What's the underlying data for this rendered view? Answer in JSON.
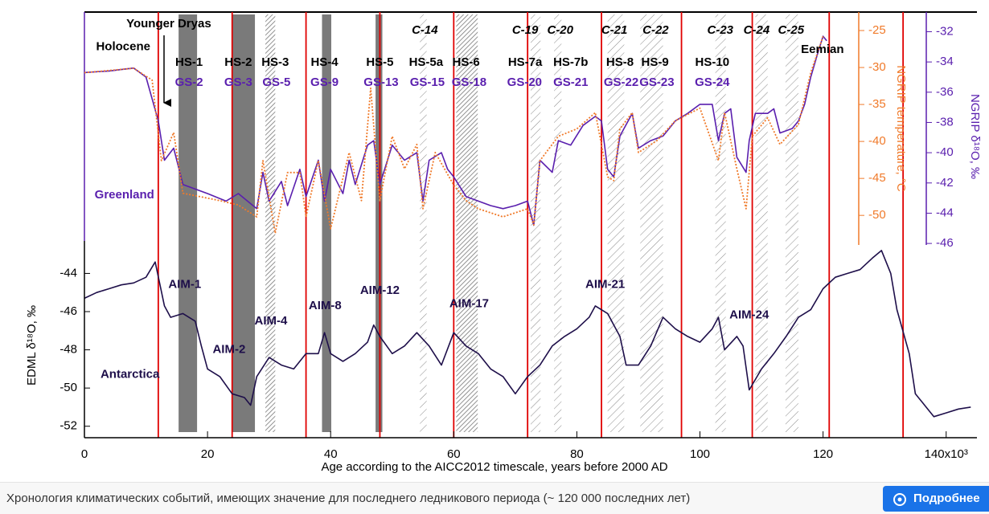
{
  "chart_data": [
    {
      "type": "line",
      "xlim": [
        0,
        145
      ],
      "ylim": [
        -46.1,
        -30.7
      ],
      "yticks": [
        -32,
        -34,
        -36,
        -38,
        -40,
        -42,
        -44,
        -46
      ],
      "ylabel": "NGRIP δ¹⁸O, ‰",
      "y2lim": [
        -54,
        -22.5
      ],
      "y2ticks": [
        -25,
        -30,
        -35,
        -40,
        -45,
        -50
      ],
      "y2label": "NGRIP temperature, °C",
      "series": [
        {
          "color": "#5a1fae",
          "x": [
            0,
            4,
            8,
            10,
            12,
            13,
            14.5,
            16,
            20,
            23,
            25,
            28,
            29,
            30,
            32,
            33,
            35,
            36,
            38,
            39,
            40,
            42,
            43,
            44,
            46,
            47,
            48,
            50,
            52,
            54,
            55,
            56,
            58,
            59,
            60,
            62,
            64,
            66,
            68,
            70,
            72,
            73,
            74,
            76,
            77,
            79,
            81,
            83,
            84,
            85,
            86,
            87,
            89,
            90,
            92,
            94,
            96,
            98,
            100,
            102,
            103,
            104,
            105,
            106,
            107.5,
            108,
            109,
            111,
            112,
            113,
            115,
            116,
            117,
            118,
            119,
            120,
            120.6
          ],
          "values": [
            -34.7,
            -34.6,
            -34.4,
            -35.0,
            -37.9,
            -40.5,
            -39.7,
            -42.1,
            -42.7,
            -43.2,
            -42.7,
            -43.7,
            -41.3,
            -43.2,
            -41.9,
            -43.5,
            -41.1,
            -42.9,
            -40.5,
            -43.2,
            -41.1,
            -42.7,
            -40.5,
            -42.1,
            -39.5,
            -39.2,
            -42.1,
            -39.5,
            -40.5,
            -40.0,
            -43.2,
            -40.5,
            -40.0,
            -41.1,
            -41.6,
            -42.9,
            -43.2,
            -43.5,
            -43.7,
            -43.5,
            -43.2,
            -44.8,
            -40.5,
            -41.3,
            -39.2,
            -39.5,
            -38.2,
            -37.6,
            -37.9,
            -41.1,
            -41.6,
            -38.9,
            -37.4,
            -39.7,
            -39.2,
            -38.9,
            -37.9,
            -37.4,
            -36.8,
            -36.8,
            -39.2,
            -37.4,
            -37.1,
            -40.3,
            -41.3,
            -39.2,
            -37.4,
            -37.4,
            -37.1,
            -38.7,
            -38.4,
            -37.9,
            -36.8,
            -35.0,
            -33.6,
            -32.3,
            -32.6
          ]
        },
        {
          "color": "#f07a2a",
          "axis": "y2",
          "dash": "dotted",
          "x": [
            0,
            8,
            11,
            12.5,
            14.5,
            16,
            22,
            25,
            28,
            29,
            31,
            33,
            35,
            36,
            38,
            40,
            43,
            45,
            46.5,
            48,
            50,
            52,
            54,
            55,
            57,
            60,
            62,
            64,
            68,
            72,
            73,
            74,
            77,
            80,
            83,
            85,
            86,
            87,
            89,
            90,
            93,
            96,
            100,
            103,
            104,
            106,
            107.5,
            108.5,
            111,
            113,
            116,
            118,
            120
          ],
          "values": [
            -30.7,
            -30.1,
            -31.7,
            -42.6,
            -38.8,
            -47.0,
            -48.0,
            -48.6,
            -50.2,
            -42.6,
            -52.4,
            -44.2,
            -44.2,
            -50.2,
            -42.6,
            -51.8,
            -41.5,
            -48.0,
            -32.8,
            -48.0,
            -39.3,
            -43.7,
            -40.4,
            -49.1,
            -41.5,
            -45.9,
            -48.0,
            -49.1,
            -50.2,
            -49.1,
            -51.3,
            -42.6,
            -39.3,
            -38.3,
            -36.1,
            -44.8,
            -45.3,
            -38.3,
            -36.1,
            -41.5,
            -39.9,
            -37.2,
            -35.5,
            -42.6,
            -36.1,
            -43.7,
            -49.1,
            -39.3,
            -36.8,
            -40.4,
            -37.7,
            -30.7,
            -25.8
          ]
        }
      ],
      "annotations": [
        {
          "text": "Holocene",
          "x": 6.3,
          "y": -33.0
        },
        {
          "text": "Younger Dryas",
          "x": 13.7,
          "y": -31.5
        },
        {
          "text": "Eemian",
          "x": 119.9,
          "y": -33.2
        },
        {
          "text": "Greenland",
          "x": 6.5,
          "y": -42.8
        }
      ],
      "event_lines": [
        12,
        24,
        36,
        48,
        60,
        72,
        84,
        97,
        108.5,
        121,
        133
      ],
      "bands": [
        {
          "start": 15.3,
          "end": 18.3,
          "pattern": "solid"
        },
        {
          "start": 24.1,
          "end": 27.7,
          "pattern": "solid"
        },
        {
          "start": 29.4,
          "end": 31.0,
          "pattern": "dense"
        },
        {
          "start": 38.6,
          "end": 40.1,
          "pattern": "solid"
        },
        {
          "start": 47.3,
          "end": 48.4,
          "pattern": "solid"
        },
        {
          "start": 54.5,
          "end": 55.6,
          "pattern": "light"
        },
        {
          "start": 60.4,
          "end": 63.9,
          "pattern": "dense"
        },
        {
          "start": 72.5,
          "end": 74.1,
          "pattern": "light"
        },
        {
          "start": 76.3,
          "end": 77.5,
          "pattern": "light"
        },
        {
          "start": 85.0,
          "end": 87.7,
          "pattern": "light"
        },
        {
          "start": 90.3,
          "end": 94.0,
          "pattern": "light"
        },
        {
          "start": 102.5,
          "end": 104.2,
          "pattern": "light"
        },
        {
          "start": 109.0,
          "end": 111.0,
          "pattern": "light"
        },
        {
          "start": 113.9,
          "end": 116.0,
          "pattern": "light"
        }
      ],
      "hs_labels": [
        {
          "text": "HS-1",
          "x": 17
        },
        {
          "text": "HS-2",
          "x": 25
        },
        {
          "text": "HS-3",
          "x": 31
        },
        {
          "text": "HS-4",
          "x": 39
        },
        {
          "text": "HS-5",
          "x": 48
        },
        {
          "text": "HS-5a",
          "x": 55.5
        },
        {
          "text": "HS-6",
          "x": 62
        },
        {
          "text": "HS-7a",
          "x": 71.6
        },
        {
          "text": "HS-7b",
          "x": 79
        },
        {
          "text": "HS-8",
          "x": 87
        },
        {
          "text": "HS-9",
          "x": 92.7
        },
        {
          "text": "HS-10",
          "x": 102
        }
      ],
      "gs_labels": [
        {
          "text": "GS-2",
          "x": 17
        },
        {
          "text": "GS-3",
          "x": 25
        },
        {
          "text": "GS-5",
          "x": 31.2
        },
        {
          "text": "GS-9",
          "x": 39
        },
        {
          "text": "GS-13",
          "x": 48.2
        },
        {
          "text": "GS-15",
          "x": 55.7
        },
        {
          "text": "GS-18",
          "x": 62.5
        },
        {
          "text": "GS-20",
          "x": 71.5
        },
        {
          "text": "GS-21",
          "x": 79
        },
        {
          "text": "GS-22",
          "x": 87.2
        },
        {
          "text": "GS-23",
          "x": 93
        },
        {
          "text": "GS-24",
          "x": 102
        }
      ],
      "c_labels": [
        {
          "text": "C-14",
          "x": 55.3
        },
        {
          "text": "C-19",
          "x": 71.6
        },
        {
          "text": "C-20",
          "x": 77.3
        },
        {
          "text": "C-21",
          "x": 86.1
        },
        {
          "text": "C-22",
          "x": 92.8
        },
        {
          "text": "C-23",
          "x": 103.3
        },
        {
          "text": "C-24",
          "x": 109.2
        },
        {
          "text": "C-25",
          "x": 114.8
        }
      ]
    },
    {
      "type": "line",
      "xlim": [
        0,
        145
      ],
      "xticks": [
        0,
        20,
        40,
        60,
        80,
        100,
        120,
        {
          "value": 140,
          "label": "140x10³"
        }
      ],
      "xlabel": "Age according to the AICC2012 timescale, years before 2000 AD",
      "ylim": [
        -52.6,
        -42.3
      ],
      "yticks": [
        -44,
        -46,
        -48,
        -50,
        -52
      ],
      "ylabel": "EDML δ¹⁸O, ‰",
      "series": [
        {
          "color": "#1e0f4a",
          "x": [
            0,
            2,
            4,
            6,
            8,
            10,
            11.5,
            13,
            14,
            16,
            18,
            19,
            20,
            22,
            24,
            26,
            27,
            28,
            30,
            32,
            34,
            36,
            38,
            39,
            40,
            42,
            44,
            46,
            47,
            48,
            50,
            52,
            54,
            56,
            58,
            60,
            62,
            64,
            66,
            68,
            70,
            72,
            74,
            76,
            78,
            80,
            82,
            83,
            85,
            87,
            88,
            90,
            92,
            94,
            96,
            98,
            100,
            102,
            103,
            104,
            106,
            107,
            108,
            110,
            112,
            114,
            116,
            118,
            120,
            122,
            124,
            126,
            128,
            129.5,
            131,
            132,
            134,
            135,
            136,
            138,
            140,
            142,
            144
          ],
          "values": [
            -45.3,
            -45.0,
            -44.8,
            -44.6,
            -44.5,
            -44.2,
            -43.4,
            -45.7,
            -46.3,
            -46.1,
            -46.5,
            -47.8,
            -49.0,
            -49.4,
            -50.3,
            -50.5,
            -50.9,
            -49.4,
            -48.4,
            -48.8,
            -49.0,
            -48.2,
            -48.2,
            -47.1,
            -48.2,
            -48.6,
            -48.2,
            -47.6,
            -46.7,
            -47.3,
            -48.2,
            -47.8,
            -47.1,
            -47.8,
            -48.8,
            -47.1,
            -47.8,
            -48.2,
            -49.0,
            -49.4,
            -50.3,
            -49.4,
            -48.8,
            -47.8,
            -47.3,
            -46.9,
            -46.3,
            -45.7,
            -46.1,
            -47.3,
            -48.8,
            -48.8,
            -47.8,
            -46.3,
            -46.9,
            -47.3,
            -47.6,
            -46.9,
            -46.3,
            -48.0,
            -47.3,
            -47.8,
            -50.1,
            -49.0,
            -48.2,
            -47.3,
            -46.3,
            -45.9,
            -44.8,
            -44.2,
            -44.0,
            -43.8,
            -43.2,
            -42.8,
            -44.0,
            -45.9,
            -48.2,
            -50.3,
            -50.7,
            -51.5,
            -51.3,
            -51.1,
            -51.0
          ]
        }
      ],
      "annotations": [
        {
          "text": "Antarctica",
          "x": 7.4,
          "y": -49.3
        },
        {
          "text": "AIM-1",
          "x": 16.3,
          "y": -44.6
        },
        {
          "text": "AIM-2",
          "x": 23.5,
          "y": -48.0
        },
        {
          "text": "AIM-4",
          "x": 30.3,
          "y": -46.5
        },
        {
          "text": "AIM-8",
          "x": 39.1,
          "y": -45.7
        },
        {
          "text": "AIM-12",
          "x": 48.0,
          "y": -44.9
        },
        {
          "text": "AIM-17",
          "x": 62.5,
          "y": -45.6
        },
        {
          "text": "AIM-21",
          "x": 84.6,
          "y": -44.6
        },
        {
          "text": "AIM-24",
          "x": 108.0,
          "y": -46.2
        }
      ]
    }
  ],
  "caption": "Хронология климатических событий, имеющих значение для последнего ледникового периода (~ 120 000 последних лет)",
  "button": "Подробнее"
}
